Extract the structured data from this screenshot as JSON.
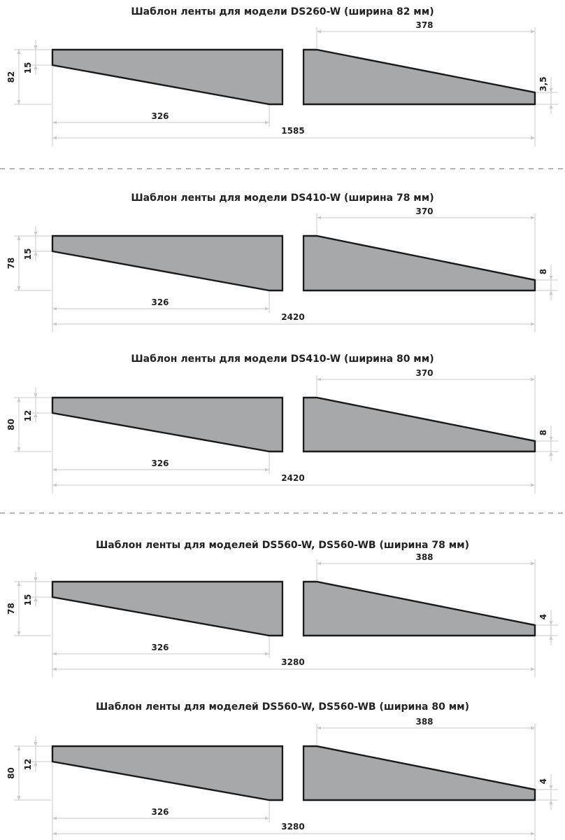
{
  "colors": {
    "fill": "#a6a8aa",
    "outline": "#1a1a1a",
    "dimension": "#c9c9c9",
    "text": "#222222",
    "separator": "#8a8a8a"
  },
  "templates": [
    {
      "title": "Шаблон ленты для модели DS260-W (ширина 82 мм)",
      "width_label": "82",
      "left_step_label": "15",
      "left_taper_label": "326",
      "right_taper_label": "378",
      "right_end_label": "3,5",
      "total_length_label": "1585"
    },
    {
      "title": "Шаблон ленты для модели DS410-W (ширина 78 мм)",
      "width_label": "78",
      "left_step_label": "15",
      "left_taper_label": "326",
      "right_taper_label": "370",
      "right_end_label": "8",
      "total_length_label": "2420"
    },
    {
      "title": "Шаблон ленты для модели DS410-W (ширина 80 мм)",
      "width_label": "80",
      "left_step_label": "12",
      "left_taper_label": "326",
      "right_taper_label": "370",
      "right_end_label": "8",
      "total_length_label": "2420"
    },
    {
      "title": "Шаблон ленты для моделей DS560-W, DS560-WB (ширина 78 мм)",
      "width_label": "78",
      "left_step_label": "15",
      "left_taper_label": "326",
      "right_taper_label": "388",
      "right_end_label": "4",
      "total_length_label": "3280"
    },
    {
      "title": "Шаблон ленты для моделей DS560-W, DS560-WB (ширина 80 мм)",
      "width_label": "80",
      "left_step_label": "12",
      "left_taper_label": "326",
      "right_taper_label": "388",
      "right_end_label": "4",
      "total_length_label": "3280"
    }
  ]
}
